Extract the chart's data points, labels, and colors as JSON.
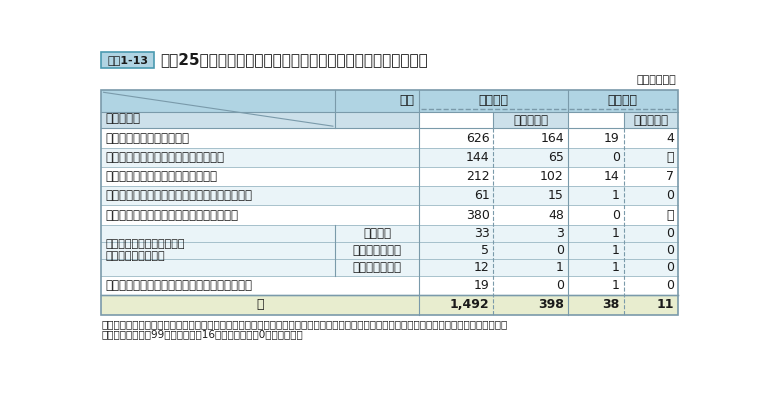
{
  "title": "平成25年度経験者採用試験の試験の種類別申込者数・合格者数",
  "resource_label": "資料1-13",
  "unit_label": "（単位：人）",
  "note_line1": "（注）　上記のほか、防衛省が特別職の職員の採用試験として実施し、人事院が当該試験の実施を支援する「防衛省経験者採用試験（係長級）」",
  "note_line2": "　　　（申込者数99人（うち女性16人）、合格者数0人）がある。",
  "rows": [
    {
      "type": "data",
      "col1": "経験者採用試験（係長級）",
      "col2": "",
      "v1": "626",
      "v2": "164",
      "v3": "19",
      "v4": "4"
    },
    {
      "type": "data",
      "col1": "外務省経験者採用試験（課長補佐級）",
      "col2": "",
      "v1": "144",
      "v2": "65",
      "v3": "0",
      "v4": "－"
    },
    {
      "type": "data",
      "col1": "外務省経験者採用試験（書記官級）",
      "col2": "",
      "v1": "212",
      "v2": "102",
      "v3": "14",
      "v4": "7"
    },
    {
      "type": "data",
      "col1": "農林水産省経験者採用試験（係長級（技術））",
      "col2": "",
      "v1": "61",
      "v2": "15",
      "v3": "1",
      "v4": "0"
    },
    {
      "type": "data",
      "col1": "経済産業省経験者採用試験（課長補佐級）",
      "col2": "",
      "v1": "380",
      "v2": "48",
      "v3": "0",
      "v4": "－"
    },
    {
      "type": "data_sub",
      "col1": "国土交通省経験者採用試験\n（係長級（技術））",
      "col2": "本省区分",
      "v1": "33",
      "v2": "3",
      "v3": "1",
      "v4": "0"
    },
    {
      "type": "data_sub",
      "col1": "",
      "col2": "国土地理院区分",
      "v1": "5",
      "v2": "0",
      "v3": "1",
      "v4": "0"
    },
    {
      "type": "data_sub",
      "col1": "",
      "col2": "地方整備局区分",
      "v1": "12",
      "v2": "1",
      "v3": "1",
      "v4": "0"
    },
    {
      "type": "data",
      "col1": "海上保安庁経験者採用試験（係長級（技術））",
      "col2": "",
      "v1": "19",
      "v2": "0",
      "v3": "1",
      "v4": "0"
    },
    {
      "type": "total",
      "col1": "計",
      "col2": "",
      "v1": "1,492",
      "v2": "398",
      "v3": "38",
      "v4": "11"
    }
  ],
  "colors": {
    "header_bg": "#b0d4e3",
    "header_bg2": "#cce0ea",
    "total_bg": "#e8edcf",
    "row_bg_white": "#ffffff",
    "row_bg_light": "#eaf4f8",
    "border": "#7a9aaa",
    "border_light": "#9ab8c4",
    "border_dashed": "#7a9aaa",
    "text_dark": "#1a1a1a",
    "resource_bg": "#b0d4e3",
    "resource_border": "#4a9ab0"
  }
}
